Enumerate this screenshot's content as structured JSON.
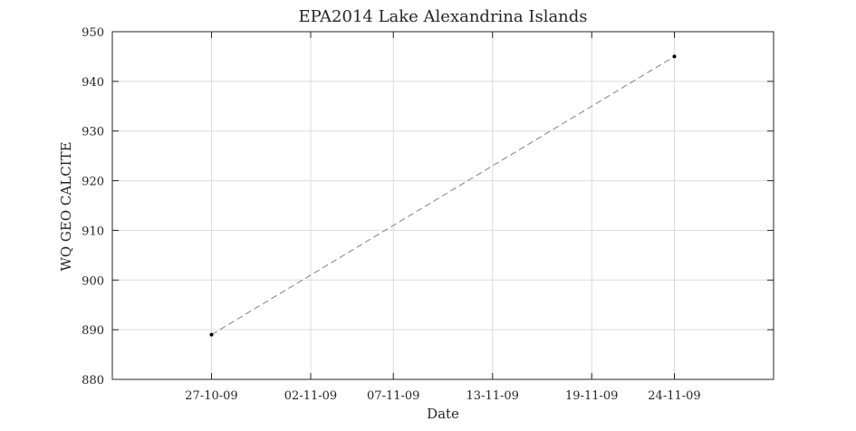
{
  "chart_data": {
    "type": "line",
    "title": "EPA2014 Lake Alexandrina Islands",
    "xlabel": "Date",
    "ylabel": "WQ GEO CALCITE",
    "x_tick_labels": [
      "27-10-09",
      "02-11-09",
      "07-11-09",
      "13-11-09",
      "19-11-09",
      "24-11-09"
    ],
    "x_ticks": [
      "2009-10-27",
      "2009-11-02",
      "2009-11-07",
      "2009-11-13",
      "2009-11-19",
      "2009-11-24"
    ],
    "xlim": [
      "2009-10-21",
      "2009-11-30"
    ],
    "ylim": [
      880,
      950
    ],
    "y_ticks": [
      880,
      890,
      900,
      910,
      920,
      930,
      940,
      950
    ],
    "grid": true,
    "series": [
      {
        "x": [
          "2009-10-27",
          "2009-11-24"
        ],
        "values": [
          889,
          945
        ],
        "color": "#808080",
        "marker_color": "#000000"
      }
    ]
  }
}
